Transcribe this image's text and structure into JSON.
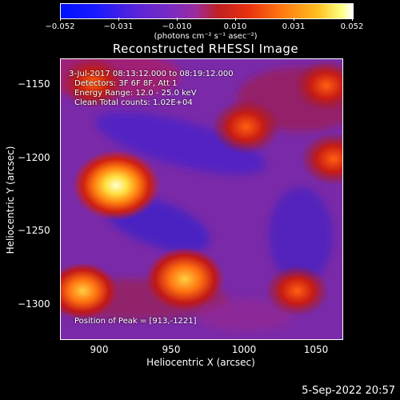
{
  "colorbar": {
    "ticks": [
      "−0.052",
      "−0.031",
      "−0.010",
      "0.010",
      "0.031",
      "0.052"
    ],
    "units": "(photons cm⁻² s⁻¹ asec⁻²)"
  },
  "plot": {
    "title": "Reconstructed RHESSI Image",
    "xlabel": "Heliocentric X (arcsec)",
    "ylabel": "Heliocentric Y (arcsec)",
    "xticks": [
      "900",
      "950",
      "1000",
      "1050"
    ],
    "yticks": [
      "−1150",
      "−1200",
      "−1250",
      "−1300"
    ]
  },
  "info": {
    "time_range": "3-Jul-2017 08:13:12.000 to 08:19:12.000",
    "detectors": "Detectors: 3F 6F 8F, Att 1",
    "energy_range": "Energy Range: 12.0 - 25.0 keV",
    "method_counts": "Clean    Total counts: 1.02E+04",
    "peak_position": "Position of Peak = [913,-1221]"
  },
  "timestamp": "5-Sep-2022 20:57",
  "image_sources": [
    {
      "name": "main-source",
      "x": 911,
      "y": -1218,
      "peak": 1.0
    },
    {
      "name": "upper-right-source",
      "x": 1000,
      "y": -1178,
      "peak": 0.55
    },
    {
      "name": "lower-middle-source",
      "x": 958,
      "y": -1282,
      "peak": 0.8
    },
    {
      "name": "lower-left-source",
      "x": 888,
      "y": -1290,
      "peak": 0.6
    },
    {
      "name": "right-edge-source",
      "x": 1060,
      "y": -1200,
      "peak": 0.5
    },
    {
      "name": "bottom-right-source",
      "x": 1035,
      "y": -1290,
      "peak": 0.45
    },
    {
      "name": "top-left-source",
      "x": 895,
      "y": -1148,
      "peak": 0.45
    },
    {
      "name": "top-right-source",
      "x": 1055,
      "y": -1150,
      "peak": 0.45
    }
  ]
}
